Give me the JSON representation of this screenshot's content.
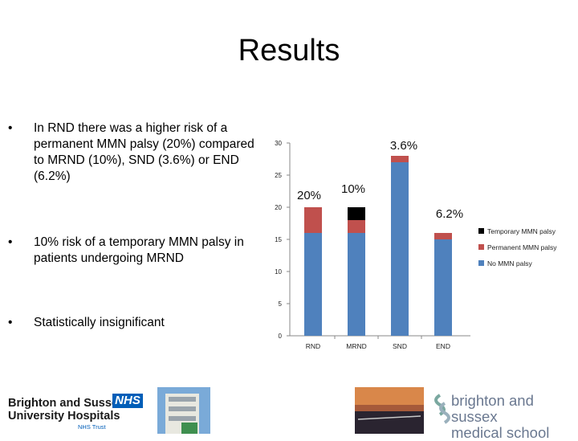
{
  "slide": {
    "title": "Results",
    "bullets": [
      "In RND there was a higher risk of a permanent MMN palsy (20%) compared to MRND (10%), SND (3.6%) or END (6.2%)",
      "10% risk of a temporary MMN palsy in patients undergoing MRND",
      "Statistically insignificant"
    ],
    "bullet_symbol": "•"
  },
  "footer": {
    "left_logo_lines": [
      "Brighton and Sussex",
      "University Hospitals"
    ],
    "nhs_badge": "NHS",
    "nhs_trust": "NHS Trust",
    "right_logo_lines": [
      "brighton and sussex",
      "medical school"
    ]
  },
  "chart_data": {
    "type": "bar",
    "stacked": true,
    "categories": [
      "RND",
      "MRND",
      "SND",
      "END"
    ],
    "series": [
      {
        "name": "No MMN palsy",
        "color": "#4f81bd",
        "values": [
          16,
          16,
          27,
          15
        ]
      },
      {
        "name": "Permanent MMN palsy",
        "color": "#c0504d",
        "values": [
          4,
          2,
          1,
          1
        ]
      },
      {
        "name": "Temporary MMN palsy",
        "color": "#000000",
        "values": [
          0,
          2,
          0,
          0
        ]
      }
    ],
    "annotations": [
      "20%",
      "10%",
      "3.6%",
      "6.2%"
    ],
    "ylim": [
      0,
      30
    ],
    "yticks": [
      0,
      5,
      10,
      15,
      20,
      25,
      30
    ],
    "legend_position": "right",
    "grid": false
  }
}
